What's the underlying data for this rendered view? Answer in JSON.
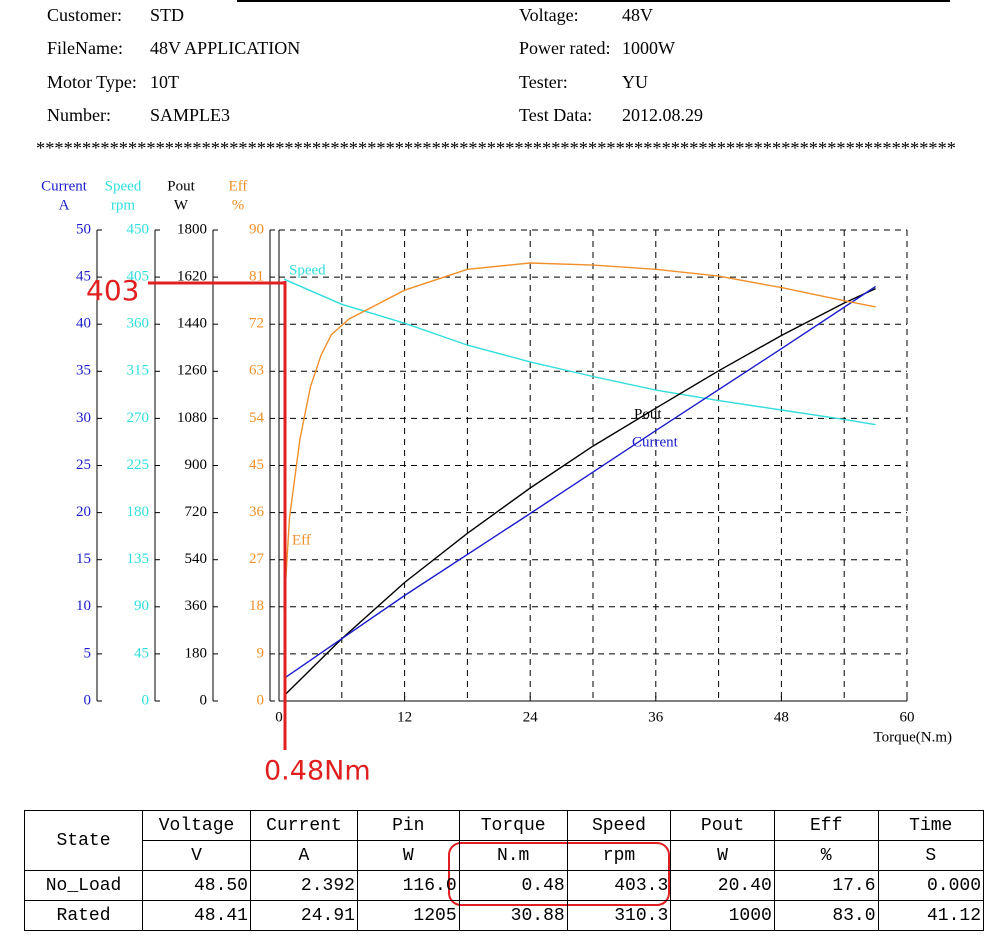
{
  "header": {
    "fields": [
      {
        "label": "Customer:",
        "value": "STD"
      },
      {
        "label": "FileName:",
        "value": "48V APPLICATION"
      },
      {
        "label": "Motor Type:",
        "value": "10T"
      },
      {
        "label": "Number:",
        "value": "SAMPLE3"
      },
      {
        "label": "Voltage:",
        "value": "48V"
      },
      {
        "label": "Power rated:",
        "value": "1000W"
      },
      {
        "label": "Tester:",
        "value": "YU"
      },
      {
        "label": "Test Data:",
        "value": "2012.08.29"
      }
    ],
    "separator": "****************************************************************************************************"
  },
  "chart_data": {
    "type": "line",
    "x_label": "Torque(N.m)",
    "xlim": [
      0,
      60
    ],
    "xticks": [
      0,
      12,
      24,
      36,
      48,
      60
    ],
    "x_minor_ticks": [
      6,
      18,
      30,
      42,
      54
    ],
    "grid": true,
    "axes": [
      {
        "title": "Current",
        "unit": "A",
        "color": "#1c1ccc",
        "lim": [
          0,
          50
        ],
        "ticks": [
          0,
          5,
          10,
          15,
          20,
          25,
          30,
          35,
          40,
          45,
          50
        ]
      },
      {
        "title": "Speed",
        "unit": "rpm",
        "color": "#33dddd",
        "lim": [
          0,
          450
        ],
        "ticks": [
          0,
          45,
          90,
          135,
          180,
          225,
          270,
          315,
          360,
          405,
          450
        ]
      },
      {
        "title": "Pout",
        "unit": "W",
        "color": "#000000",
        "lim": [
          0,
          1800
        ],
        "ticks": [
          0,
          180,
          360,
          540,
          720,
          900,
          1080,
          1260,
          1440,
          1620,
          1800
        ]
      },
      {
        "title": "Eff",
        "unit": "%",
        "color": "#f0902a",
        "lim": [
          0,
          90
        ],
        "ticks": [
          0,
          9,
          18,
          27,
          36,
          45,
          54,
          63,
          72,
          81,
          90
        ]
      }
    ],
    "series": [
      {
        "name": "Speed",
        "axis": 1,
        "color": "#33dddd",
        "x": [
          0.48,
          6,
          12,
          18,
          24,
          30,
          36,
          42,
          48,
          54,
          57
        ],
        "values": [
          403,
          379,
          361,
          340,
          324,
          310,
          297,
          287,
          278,
          269,
          264
        ]
      },
      {
        "name": "Pout",
        "axis": 2,
        "color": "#000000",
        "x": [
          0.48,
          6,
          12,
          18,
          24,
          30,
          36,
          42,
          48,
          54,
          57
        ],
        "values": [
          20,
          238,
          453,
          641,
          814,
          974,
          1119,
          1262,
          1397,
          1521,
          1576
        ]
      },
      {
        "name": "Current",
        "axis": 0,
        "color": "#1c1ccc",
        "x": [
          0.48,
          12,
          24,
          36,
          48,
          57
        ],
        "values": [
          2.4,
          11.2,
          19.9,
          28.7,
          37.4,
          44
        ]
      },
      {
        "name": "Eff",
        "axis": 3,
        "color": "#f0902a",
        "x": [
          0.48,
          1,
          2,
          3,
          4,
          5,
          6.7,
          12,
          18,
          24,
          30,
          36,
          42,
          48,
          54,
          57
        ],
        "values": [
          17.6,
          35,
          50,
          60,
          66,
          70,
          73,
          78.5,
          82.5,
          83.7,
          83.3,
          82.5,
          81.2,
          79,
          76.5,
          75.3
        ]
      }
    ],
    "annotations": [
      "403",
      "0.48Nm"
    ]
  },
  "table": {
    "header": [
      "State",
      "Voltage",
      "Current",
      "Pin",
      "Torque",
      "Speed",
      "Pout",
      "Eff",
      "Time"
    ],
    "units": [
      "V",
      "A",
      "W",
      "N.m",
      "rpm",
      "W",
      "%",
      "S"
    ],
    "rows": [
      [
        "No_Load",
        "48.50",
        "2.392",
        "116.0",
        "0.48",
        "403.3",
        "20.40",
        "17.6",
        "0.000"
      ],
      [
        "Rated",
        "48.41",
        "24.91",
        "1205",
        "30.88",
        "310.3",
        "1000",
        "83.0",
        "41.12"
      ]
    ]
  }
}
